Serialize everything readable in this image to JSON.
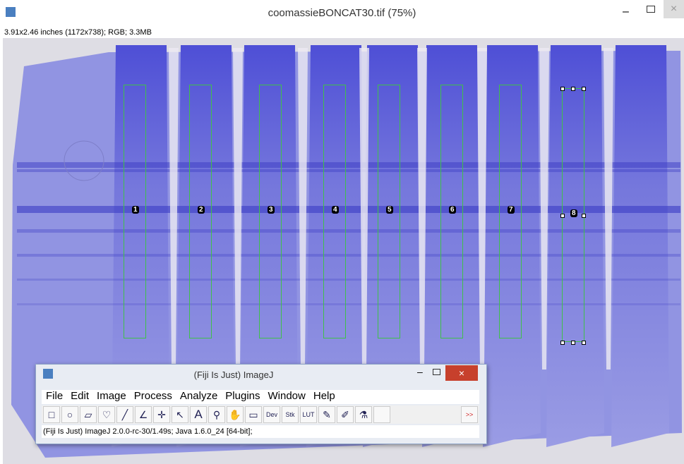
{
  "image_window": {
    "title": "coomassieBONCAT30.tif (75%)",
    "info": "3.91x2.46 inches (1172x738); RGB; 3.3MB"
  },
  "rois": [
    {
      "label": "1"
    },
    {
      "label": "2"
    },
    {
      "label": "3"
    },
    {
      "label": "4"
    },
    {
      "label": "5"
    },
    {
      "label": "6"
    },
    {
      "label": "7"
    },
    {
      "label": "8"
    }
  ],
  "imagej": {
    "title": "(Fiji Is Just) ImageJ",
    "menu": [
      "File",
      "Edit",
      "Image",
      "Process",
      "Analyze",
      "Plugins",
      "Window",
      "Help"
    ],
    "tools": [
      "A",
      "Dev",
      "Stk",
      "LUT",
      ">>"
    ],
    "status": "(Fiji Is Just) ImageJ 2.0.0-rc-30/1.49s; Java 1.6.0_24 [64-bit];"
  }
}
